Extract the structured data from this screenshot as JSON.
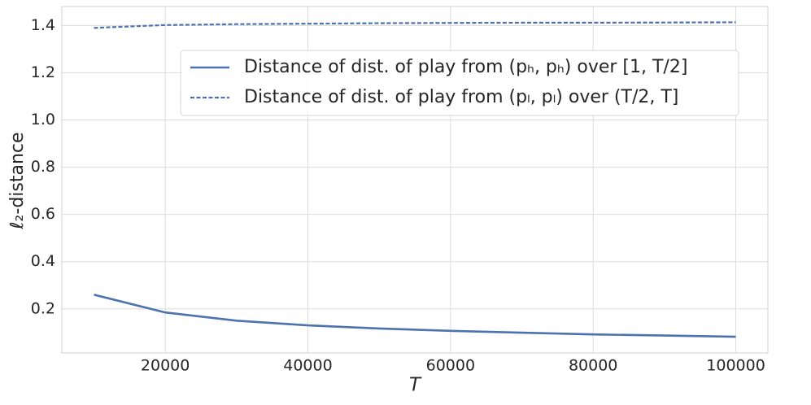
{
  "chart_data": {
    "type": "line",
    "xlabel": "T",
    "ylabel": "ℓ₂-distance",
    "x": [
      10000,
      20000,
      30000,
      40000,
      50000,
      60000,
      70000,
      80000,
      90000,
      100000
    ],
    "series": [
      {
        "name": "Distance of dist. of play from (pₕ, pₕ) over [1, T/2]",
        "color": "#4c72b0",
        "dash": "solid",
        "values": [
          0.26,
          0.185,
          0.15,
          0.13,
          0.117,
          0.107,
          0.099,
          0.092,
          0.087,
          0.082
        ]
      },
      {
        "name": "Distance of dist. of play from (pₗ, pₗ) over (T/2, T]",
        "color": "#4c72b0",
        "dash": "dashed",
        "values": [
          1.39,
          1.402,
          1.406,
          1.408,
          1.41,
          1.411,
          1.412,
          1.412,
          1.413,
          1.414
        ]
      }
    ],
    "xlim": [
      5500,
      104500
    ],
    "xticks": [
      20000,
      40000,
      60000,
      80000,
      100000
    ],
    "ylim": [
      0.0133,
      1.4807
    ],
    "yticks": [
      0.2,
      0.4,
      0.6,
      0.8,
      1.0,
      1.2,
      1.4
    ],
    "grid": true,
    "legend": "upper right"
  }
}
